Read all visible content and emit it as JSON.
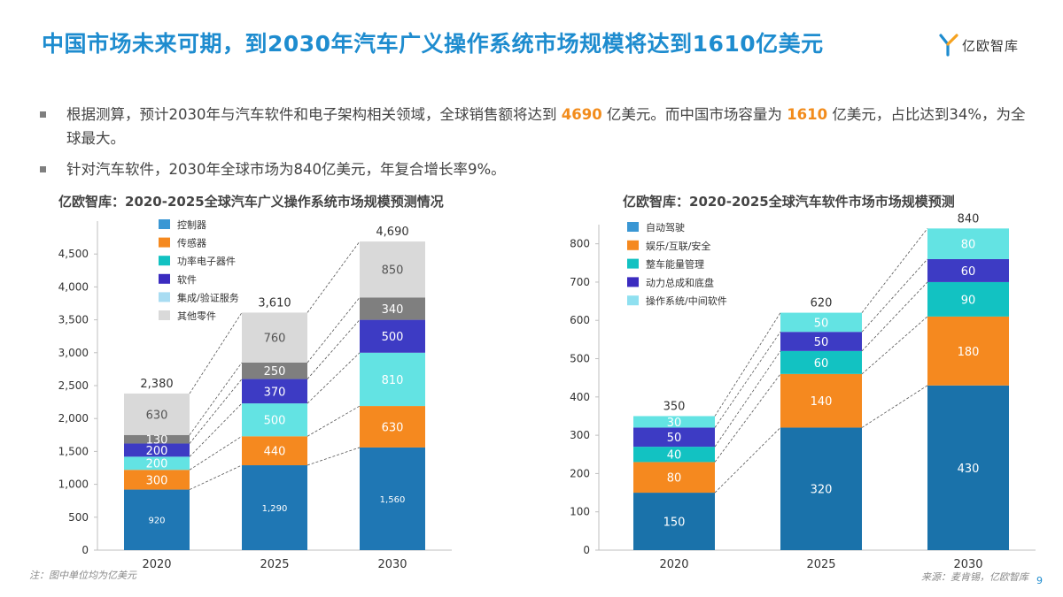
{
  "page": {
    "title": "中国市场未来可期，到2030年汽车广义操作系统市场规模将达到1610亿美元",
    "logo_text": "亿欧智库",
    "bullet1": {
      "t1": "根据测算，预计2030年与汽车软件和电子架构相关领域，全球销售额将达到 ",
      "h1": "4690",
      "t2": " 亿美元。而中国市场容量为 ",
      "h2": "1610",
      "t3": " 亿美元，占比达到34%，为全球最大。"
    },
    "bullet2": "针对汽车软件，2030年全球市场为840亿美元，年复合增长率9%。",
    "footnote": "注：图中单位均为亿美元",
    "source": "来源：麦肯锡，亿欧智库",
    "page_number": "9",
    "colors": {
      "title": "#1e8ccf",
      "highlight": "#f28c1c",
      "bullet": "#7f7f7f"
    }
  },
  "chart_data": [
    {
      "type": "bar",
      "stacked": true,
      "title": "亿欧智库：2020-2025全球汽车广义操作系统市场规模预测情况",
      "categories": [
        "2020",
        "2025",
        "2030"
      ],
      "ylim": [
        0,
        5000
      ],
      "yticks": [
        0,
        500,
        1000,
        1500,
        2000,
        2500,
        3000,
        3500,
        4000,
        4500
      ],
      "ytick_labels": [
        "0",
        "500",
        "1,000",
        "1,500",
        "2,000",
        "2,500",
        "3,000",
        "3,500",
        "4,000",
        "4,500"
      ],
      "totals": [
        "2,380",
        "3,610",
        "4,690"
      ],
      "series": [
        {
          "name": "控制器",
          "values": [
            920,
            1290,
            1560
          ],
          "labels": [
            "920",
            "1,290",
            "1,560"
          ],
          "color": "#1f77b4"
        },
        {
          "name": "传感器",
          "values": [
            300,
            440,
            630
          ],
          "labels": [
            "300",
            "440",
            "630"
          ],
          "color": "#f5891f"
        },
        {
          "name": "功率电子器件",
          "values": [
            200,
            500,
            810
          ],
          "labels": [
            "200",
            "500",
            "810"
          ],
          "color": "#63e3e3"
        },
        {
          "name": "软件",
          "values": [
            200,
            370,
            500
          ],
          "labels": [
            "200",
            "370",
            "500"
          ],
          "color": "#3d3bc4"
        },
        {
          "name": "集成/验证服务",
          "values": [
            130,
            250,
            340
          ],
          "labels": [
            "130",
            "250",
            "340"
          ],
          "color": "#7f7f7f"
        },
        {
          "name": "其他零件",
          "values": [
            630,
            760,
            850
          ],
          "labels": [
            "630",
            "760",
            "850"
          ],
          "color": "#d9d9d9"
        }
      ],
      "legend": [
        {
          "name": "控制器",
          "color": "#3a97d4"
        },
        {
          "name": "传感器",
          "color": "#f5891f"
        },
        {
          "name": "功率电子器件",
          "color": "#12c2c2"
        },
        {
          "name": "软件",
          "color": "#3b2cc0"
        },
        {
          "name": "集成/验证服务",
          "color": "#a8dcf2"
        },
        {
          "name": "其他零件",
          "color": "#d9d9d9"
        }
      ],
      "legend_position": "top-left",
      "grid": false
    },
    {
      "type": "bar",
      "stacked": true,
      "title": "亿欧智库：2020-2025全球汽车软件市场市场规模预测",
      "categories": [
        "2020",
        "2025",
        "2030"
      ],
      "ylim": [
        0,
        850
      ],
      "yticks": [
        0,
        100,
        200,
        300,
        400,
        500,
        600,
        700,
        800
      ],
      "ytick_labels": [
        "0",
        "100",
        "200",
        "300",
        "400",
        "500",
        "600",
        "700",
        "800"
      ],
      "totals": [
        "350",
        "620",
        "840"
      ],
      "series": [
        {
          "name": "自动驾驶",
          "values": [
            150,
            320,
            430
          ],
          "labels": [
            "150",
            "320",
            "430"
          ],
          "color": "#1a72aa"
        },
        {
          "name": "娱乐/互联/安全",
          "values": [
            80,
            140,
            180
          ],
          "labels": [
            "80",
            "140",
            "180"
          ],
          "color": "#f5891f"
        },
        {
          "name": "整车能量管理",
          "values": [
            40,
            60,
            90
          ],
          "labels": [
            "40",
            "60",
            "90"
          ],
          "color": "#12c2c2"
        },
        {
          "name": "动力总成和底盘",
          "values": [
            50,
            50,
            60
          ],
          "labels": [
            "50",
            "50",
            "60"
          ],
          "color": "#3d3bc4"
        },
        {
          "name": "操作系统/中间软件",
          "values": [
            30,
            50,
            80
          ],
          "labels": [
            "30",
            "50",
            "80"
          ],
          "color": "#63e3e3"
        }
      ],
      "legend": [
        {
          "name": "自动驾驶",
          "color": "#3a97d4"
        },
        {
          "name": "娱乐/互联/安全",
          "color": "#f5891f"
        },
        {
          "name": "整车能量管理",
          "color": "#12c2c2"
        },
        {
          "name": "动力总成和底盘",
          "color": "#3b2cc0"
        },
        {
          "name": "操作系统/中间软件",
          "color": "#8fe0f0"
        }
      ],
      "legend_position": "top-left",
      "grid": false
    }
  ]
}
